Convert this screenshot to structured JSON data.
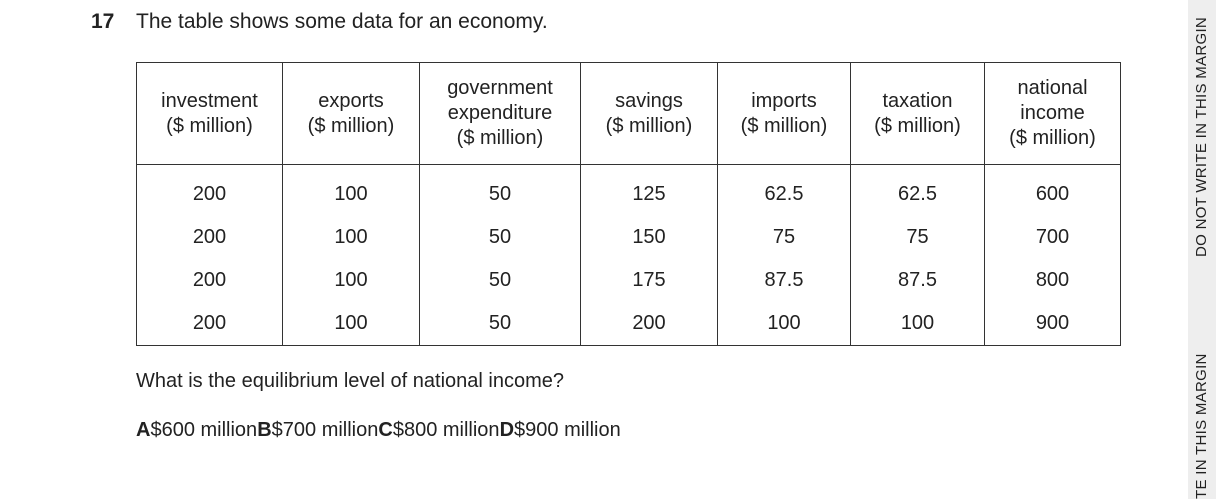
{
  "question": {
    "number": "17",
    "text": "The table shows some data for an economy.",
    "prompt": "What is the equilibrium level of national income?"
  },
  "table": {
    "headers": [
      [
        "investment",
        "($ million)"
      ],
      [
        "exports",
        "($ million)"
      ],
      [
        "government",
        "expenditure",
        "($ million)"
      ],
      [
        "savings",
        "($ million)"
      ],
      [
        "imports",
        "($ million)"
      ],
      [
        "taxation",
        "($ million)"
      ],
      [
        "national",
        "income",
        "($ million)"
      ]
    ],
    "rows": [
      [
        200,
        100,
        50,
        125,
        62.5,
        62.5,
        600
      ],
      [
        200,
        100,
        50,
        150,
        75,
        75,
        700
      ],
      [
        200,
        100,
        50,
        175,
        87.5,
        87.5,
        800
      ],
      [
        200,
        100,
        50,
        200,
        100,
        100,
        900
      ]
    ]
  },
  "options": [
    {
      "letter": "A",
      "text": "$600 million"
    },
    {
      "letter": "B",
      "text": "$700 million"
    },
    {
      "letter": "C",
      "text": "$800 million"
    },
    {
      "letter": "D",
      "text": "$900 million"
    }
  ],
  "margin": [
    "DO NOT WRITE IN THIS MARGIN",
    "TE IN THIS MARGIN"
  ]
}
